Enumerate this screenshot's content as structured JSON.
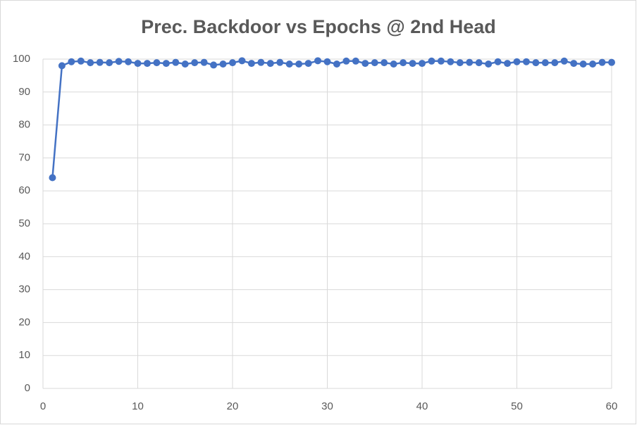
{
  "chart_data": {
    "type": "line",
    "title": "Prec. Backdoor vs Epochs @ 2nd Head",
    "x": [
      1,
      2,
      3,
      4,
      5,
      6,
      7,
      8,
      9,
      10,
      11,
      12,
      13,
      14,
      15,
      16,
      17,
      18,
      19,
      20,
      21,
      22,
      23,
      24,
      25,
      26,
      27,
      28,
      29,
      30,
      31,
      32,
      33,
      34,
      35,
      36,
      37,
      38,
      39,
      40,
      41,
      42,
      43,
      44,
      45,
      46,
      47,
      48,
      49,
      50,
      51,
      52,
      53,
      54,
      55,
      56,
      57,
      58,
      59,
      60
    ],
    "values": [
      64,
      98,
      99.2,
      99.4,
      98.9,
      99,
      98.9,
      99.3,
      99.2,
      98.7,
      98.7,
      98.9,
      98.7,
      99,
      98.5,
      98.9,
      99,
      98.2,
      98.5,
      98.9,
      99.5,
      98.7,
      99,
      98.7,
      99,
      98.5,
      98.5,
      98.7,
      99.5,
      99.2,
      98.5,
      99.4,
      99.4,
      98.7,
      98.9,
      98.9,
      98.5,
      98.9,
      98.7,
      98.7,
      99.4,
      99.4,
      99.2,
      98.9,
      99,
      98.9,
      98.5,
      99.2,
      98.7,
      99.2,
      99.2,
      98.9,
      98.9,
      98.9,
      99.4,
      98.7,
      98.5,
      98.5,
      99,
      99
    ],
    "color": "#4472c4",
    "xlim": [
      0,
      60
    ],
    "xticks": [
      0,
      10,
      20,
      30,
      40,
      50,
      60
    ],
    "ylim": [
      0,
      100
    ],
    "yticks": [
      0,
      10,
      20,
      30,
      40,
      50,
      60,
      70,
      80,
      90,
      100
    ],
    "grid": true
  }
}
